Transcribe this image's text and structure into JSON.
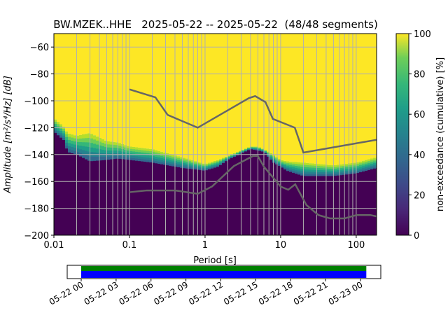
{
  "chart_data": {
    "type": "heatmap",
    "title": "BW.MZEK..HHE   2025-05-22 -- 2025-05-22  (48/48 segments)",
    "xlabel": "Period [s]",
    "ylabel": "Amplitude [m²/s⁴/Hz] [dB]",
    "xscale": "log",
    "xlim": [
      0.01,
      186
    ],
    "ylim": [
      -200,
      -50
    ],
    "x_ticks": [
      {
        "v": 0.01,
        "label": "0.01"
      },
      {
        "v": 0.1,
        "label": "0.1"
      },
      {
        "v": 1,
        "label": "1"
      },
      {
        "v": 10,
        "label": "10"
      },
      {
        "v": 100,
        "label": "100"
      }
    ],
    "y_ticks": [
      {
        "v": -60,
        "label": "−60"
      },
      {
        "v": -80,
        "label": "−80"
      },
      {
        "v": -100,
        "label": "−100"
      },
      {
        "v": -120,
        "label": "−120"
      },
      {
        "v": -140,
        "label": "−140"
      },
      {
        "v": -160,
        "label": "−160"
      },
      {
        "v": -180,
        "label": "−180"
      },
      {
        "v": -200,
        "label": "−200"
      }
    ],
    "grid": true,
    "psd_distribution": {
      "description_periods": [
        0.01,
        0.014,
        0.015,
        0.02,
        0.03,
        0.05,
        0.07,
        0.1,
        0.2,
        0.5,
        1,
        1.5,
        2,
        4,
        5,
        6,
        8,
        10,
        12,
        20,
        50,
        100,
        186
      ],
      "level_100pct_below_db": [
        -113,
        -120,
        -124,
        -126,
        -124,
        -130,
        -131,
        -134,
        -136,
        -142,
        -147,
        -144,
        -141,
        -134,
        -134,
        -136,
        -140,
        -144,
        -145,
        -146,
        -148,
        -146,
        -142
      ],
      "level_0pct_above_db": [
        -123,
        -130,
        -138,
        -140,
        -145,
        -144,
        -143,
        -144,
        -146,
        -150,
        -152,
        -149,
        -144,
        -136,
        -137,
        -138,
        -146,
        -149,
        -152,
        -156,
        -156,
        -154,
        -150
      ]
    },
    "nhnm": {
      "x": [
        0.1,
        0.22,
        0.32,
        0.8,
        3.8,
        4.6,
        6.3,
        7.9,
        15.4,
        20,
        186
      ],
      "y": [
        -91.5,
        -97.4,
        -110.5,
        -120,
        -98,
        -96.5,
        -101,
        -113.5,
        -120,
        -138.5,
        -129
      ]
    },
    "nlnm": {
      "x": [
        0.1,
        0.17,
        0.4,
        0.8,
        1.24,
        2.4,
        4.3,
        5,
        6,
        10,
        12.6,
        15.6,
        21.9,
        31.6,
        45,
        70,
        101,
        154,
        186
      ],
      "y": [
        -168,
        -166.7,
        -166.7,
        -169.2,
        -163.7,
        -148.6,
        -141.1,
        -141.1,
        -149,
        -163.8,
        -166.2,
        -162.1,
        -177.5,
        -185,
        -187.5,
        -187.5,
        -185,
        -185,
        -186
      ]
    },
    "colorbar": {
      "label": "non-exceedance (cumulative) [%]",
      "range": [
        0,
        100
      ],
      "ticks": [
        {
          "v": 0,
          "label": "0"
        },
        {
          "v": 20,
          "label": "20"
        },
        {
          "v": 40,
          "label": "40"
        },
        {
          "v": 60,
          "label": "60"
        },
        {
          "v": 80,
          "label": "80"
        },
        {
          "v": 100,
          "label": "100"
        }
      ]
    },
    "coverage": {
      "start_hours": 0,
      "end_hours": 24.5,
      "tick_labels": [
        "05-22 00",
        "05-22 03",
        "05-22 06",
        "05-22 09",
        "05-22 12",
        "05-22 15",
        "05-22 18",
        "05-22 21",
        "05-23 00"
      ],
      "colors": {
        "top": "#008000",
        "bottom": "#0000ff"
      }
    },
    "colors": {
      "nm_line": "#666666",
      "grid": "#b0b0b0"
    }
  }
}
